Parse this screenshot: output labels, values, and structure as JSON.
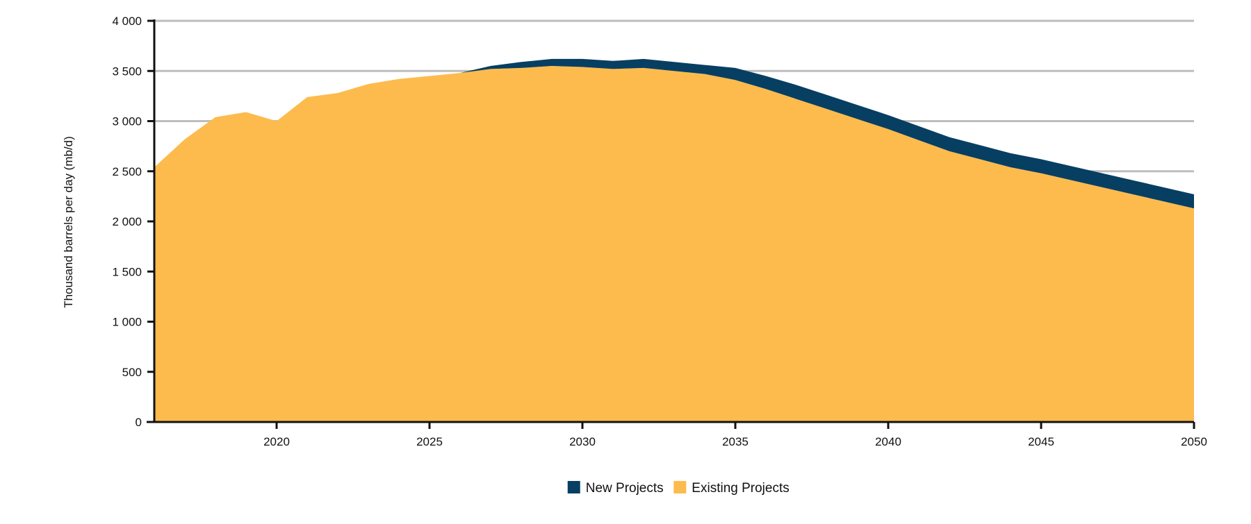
{
  "chart_data": {
    "type": "area",
    "stacked": true,
    "title": "",
    "xlabel": "",
    "ylabel": "Thousand barrels per day (mb/d)",
    "xlim": [
      2016,
      2050
    ],
    "ylim": [
      0,
      4000
    ],
    "x_ticks": [
      2020,
      2025,
      2030,
      2035,
      2040,
      2045,
      2050
    ],
    "x_tick_labels": [
      "2020",
      "2025",
      "2030",
      "2035",
      "2040",
      "2045",
      "2050"
    ],
    "y_ticks": [
      0,
      500,
      1000,
      1500,
      2000,
      2500,
      3000,
      3500,
      4000
    ],
    "y_tick_labels": [
      "0",
      "500",
      "1 000",
      "1 500",
      "2 000",
      "2 500",
      "3 000",
      "3 500",
      "4 000"
    ],
    "grid": true,
    "legend_position": "bottom-center",
    "x": [
      2016,
      2017,
      2018,
      2019,
      2020,
      2021,
      2022,
      2023,
      2024,
      2025,
      2026,
      2027,
      2028,
      2029,
      2030,
      2031,
      2032,
      2033,
      2034,
      2035,
      2036,
      2037,
      2038,
      2039,
      2040,
      2041,
      2042,
      2043,
      2044,
      2045,
      2046,
      2047,
      2048,
      2049,
      2050
    ],
    "series": [
      {
        "name": "Existing Projects",
        "color": "#FDBB4D",
        "values": [
          2540,
          2820,
          3040,
          3090,
          3000,
          3240,
          3280,
          3370,
          3420,
          3450,
          3480,
          3520,
          3530,
          3550,
          3540,
          3520,
          3530,
          3500,
          3470,
          3410,
          3320,
          3220,
          3120,
          3020,
          2920,
          2810,
          2700,
          2620,
          2540,
          2480,
          2410,
          2340,
          2270,
          2200,
          2130
        ]
      },
      {
        "name": "New Projects",
        "color": "#073F62",
        "values": [
          0,
          0,
          0,
          0,
          0,
          0,
          0,
          0,
          0,
          0,
          0,
          30,
          60,
          70,
          80,
          80,
          90,
          90,
          90,
          120,
          130,
          140,
          140,
          140,
          140,
          140,
          140,
          140,
          140,
          140,
          140,
          140,
          140,
          140,
          140
        ]
      }
    ]
  },
  "legend": {
    "items": [
      {
        "label": "New Projects",
        "color": "#073F62"
      },
      {
        "label": "Existing Projects",
        "color": "#FDBB4D"
      }
    ]
  }
}
